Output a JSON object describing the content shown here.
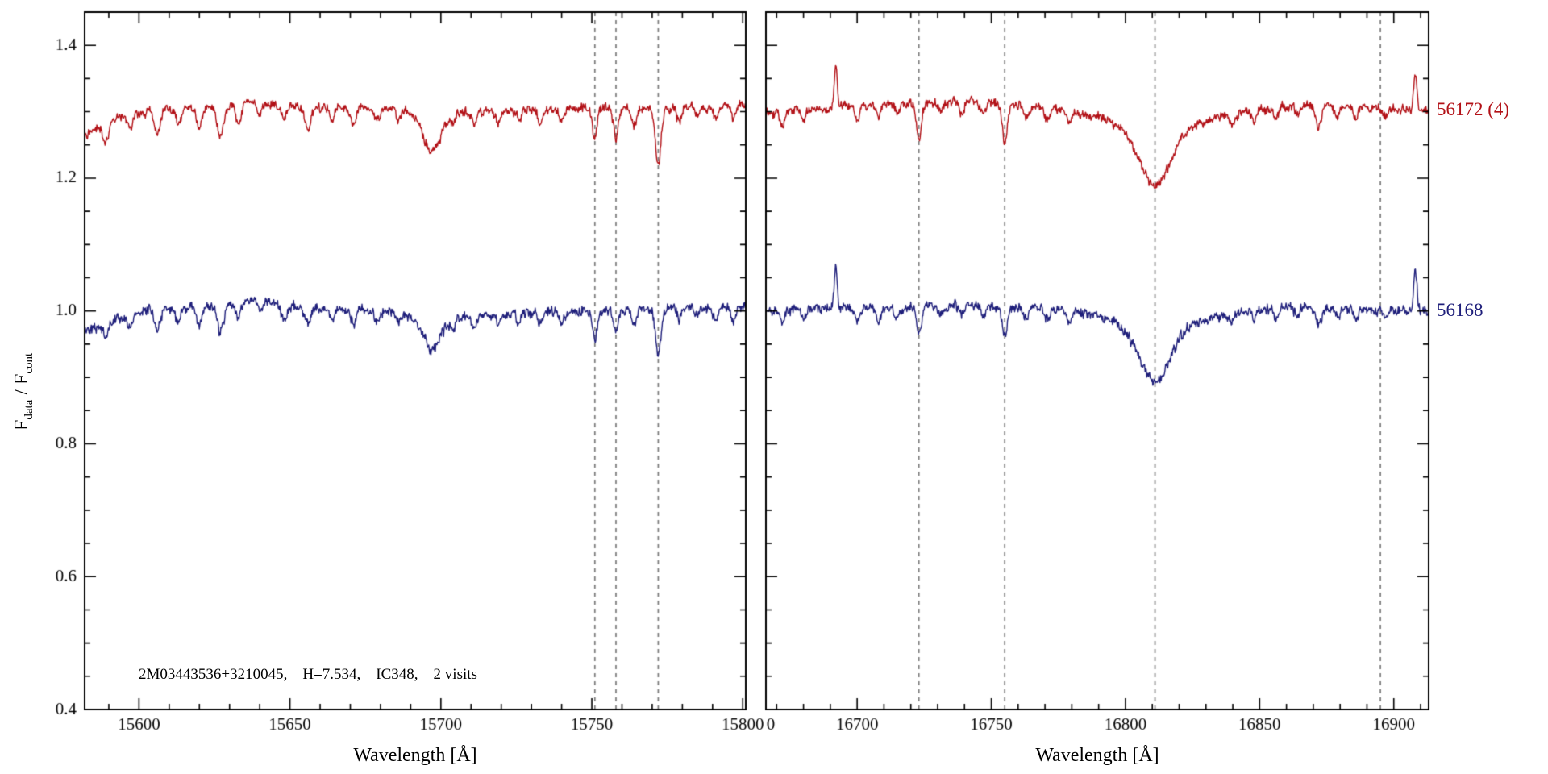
{
  "figure": {
    "ylabel_pre": "F",
    "ylabel_sub1": "data",
    "ylabel_mid": " / F",
    "ylabel_sub2": "cont",
    "annotation": "2M03443536+3210045,    H=7.534,    IC348,    2 visits",
    "background": "#ffffff",
    "frame_color": "#000000",
    "dashed_line_color": "#7a7a7a"
  },
  "chart_data": [
    {
      "type": "line",
      "panel": "left",
      "xlabel": "Wavelength [Å]",
      "ylabel": "F_data / F_cont",
      "xlim": [
        15582,
        15801
      ],
      "ylim": [
        0.4,
        1.45
      ],
      "xticks": [
        15600,
        15650,
        15700,
        15750,
        15800
      ],
      "yticks": [
        0.4,
        0.6,
        0.8,
        1.0,
        1.2,
        1.4
      ],
      "x_minor_step": 10,
      "y_minor_step": 0.05,
      "show_ytick_labels": true,
      "grid": false,
      "dashed_vlines": [
        15751,
        15758,
        15772
      ],
      "series": [
        {
          "name": "56172 (4)",
          "color": "#b21016",
          "continuum": 1.302,
          "noise": 0.0055,
          "shape": [
            [
              15582,
              -0.038
            ],
            [
              15592,
              -0.012
            ],
            [
              15602,
              -0.002
            ],
            [
              15615,
              0.003
            ],
            [
              15638,
              0.012
            ],
            [
              15652,
              0.006
            ],
            [
              15668,
              0.004
            ],
            [
              15684,
              0.002
            ],
            [
              15700,
              -0.004
            ],
            [
              15715,
              -0.002
            ],
            [
              15735,
              0.002
            ],
            [
              15755,
              0.004
            ],
            [
              15775,
              0.004
            ],
            [
              15801,
              0.008
            ]
          ],
          "features": [
            [
              15589,
              0.028,
              2.2
            ],
            [
              15597,
              0.02,
              1.8
            ],
            [
              15606,
              0.036,
              2.2
            ],
            [
              15613,
              0.022,
              1.8
            ],
            [
              15620,
              0.03,
              2
            ],
            [
              15627,
              0.05,
              2.4
            ],
            [
              15633,
              0.032,
              2
            ],
            [
              15640,
              0.02,
              1.6
            ],
            [
              15648,
              0.026,
              2
            ],
            [
              15656,
              0.032,
              2.2
            ],
            [
              15664,
              0.02,
              1.8
            ],
            [
              15671,
              0.026,
              2
            ],
            [
              15679,
              0.02,
              1.8
            ],
            [
              15686,
              0.016,
              1.8
            ],
            [
              15697,
              0.058,
              7
            ],
            [
              15704,
              0.016,
              1.8
            ],
            [
              15711,
              0.02,
              1.8
            ],
            [
              15719,
              0.018,
              1.8
            ],
            [
              15726,
              0.016,
              1.8
            ],
            [
              15733,
              0.02,
              1.8
            ],
            [
              15740,
              0.022,
              1.8
            ],
            [
              15751,
              0.05,
              1.8
            ],
            [
              15758,
              0.045,
              1.8
            ],
            [
              15764,
              0.026,
              1.8
            ],
            [
              15772,
              0.085,
              2.2
            ],
            [
              15779,
              0.022,
              1.8
            ],
            [
              15785,
              0.016,
              1.6
            ],
            [
              15791,
              0.02,
              1.8
            ],
            [
              15797,
              0.022,
              1.8
            ]
          ]
        },
        {
          "name": "56168",
          "color": "#1e1e7a",
          "continuum": 1.0,
          "noise": 0.006,
          "shape": [
            [
              15582,
              -0.033
            ],
            [
              15592,
              -0.015
            ],
            [
              15602,
              0.0
            ],
            [
              15612,
              0.004
            ],
            [
              15626,
              0.008
            ],
            [
              15638,
              0.018
            ],
            [
              15648,
              0.008
            ],
            [
              15662,
              0.004
            ],
            [
              15676,
              0.002
            ],
            [
              15692,
              -0.006
            ],
            [
              15706,
              -0.01
            ],
            [
              15722,
              -0.004
            ],
            [
              15740,
              0.0
            ],
            [
              15760,
              0.002
            ],
            [
              15780,
              0.006
            ],
            [
              15801,
              0.004
            ]
          ],
          "features": [
            [
              15589,
              0.022,
              2
            ],
            [
              15597,
              0.016,
              1.8
            ],
            [
              15606,
              0.03,
              2.2
            ],
            [
              15613,
              0.02,
              1.8
            ],
            [
              15620,
              0.026,
              2
            ],
            [
              15627,
              0.04,
              2.4
            ],
            [
              15633,
              0.026,
              2
            ],
            [
              15640,
              0.018,
              1.6
            ],
            [
              15648,
              0.022,
              2
            ],
            [
              15656,
              0.026,
              2.2
            ],
            [
              15664,
              0.018,
              1.8
            ],
            [
              15671,
              0.022,
              2
            ],
            [
              15679,
              0.018,
              1.8
            ],
            [
              15686,
              0.014,
              1.8
            ],
            [
              15697,
              0.05,
              7
            ],
            [
              15704,
              0.014,
              1.8
            ],
            [
              15711,
              0.018,
              1.8
            ],
            [
              15719,
              0.016,
              1.8
            ],
            [
              15726,
              0.014,
              1.8
            ],
            [
              15733,
              0.018,
              1.8
            ],
            [
              15740,
              0.02,
              1.8
            ],
            [
              15751,
              0.042,
              1.8
            ],
            [
              15758,
              0.036,
              1.8
            ],
            [
              15764,
              0.022,
              1.8
            ],
            [
              15772,
              0.068,
              2.2
            ],
            [
              15779,
              0.018,
              1.8
            ],
            [
              15785,
              0.014,
              1.6
            ],
            [
              15791,
              0.018,
              1.8
            ],
            [
              15797,
              0.018,
              1.8
            ]
          ]
        }
      ]
    },
    {
      "type": "line",
      "panel": "right",
      "xlabel": "Wavelength [Å]",
      "ylabel": "F_data / F_cont",
      "xlim": [
        16666,
        16913
      ],
      "ylim": [
        0.4,
        1.45
      ],
      "xticks": [
        16700,
        16750,
        16800,
        16850,
        16900
      ],
      "yticks": [
        0.4,
        0.6,
        0.8,
        1.0,
        1.2,
        1.4
      ],
      "x_minor_step": 10,
      "y_minor_step": 0.05,
      "show_ytick_labels": false,
      "clipped_left_tick_label": "0",
      "grid": false,
      "dashed_vlines": [
        16723,
        16755,
        16811,
        16895
      ],
      "series_labels": [
        {
          "text": "56172 (4)",
          "color": "#b21016",
          "y": 1.302
        },
        {
          "text": "56168",
          "color": "#1e1e7a",
          "y": 1.0
        }
      ],
      "series": [
        {
          "name": "56172 (4)",
          "color": "#b21016",
          "continuum": 1.302,
          "noise": 0.0055,
          "shape": [
            [
              16666,
              -0.005
            ],
            [
              16678,
              0.0
            ],
            [
              16690,
              0.004
            ],
            [
              16705,
              0.008
            ],
            [
              16722,
              0.01
            ],
            [
              16738,
              0.014
            ],
            [
              16752,
              0.012
            ],
            [
              16766,
              0.006
            ],
            [
              16780,
              0.0
            ],
            [
              16795,
              -0.006
            ],
            [
              16830,
              -0.008
            ],
            [
              16842,
              -0.004
            ],
            [
              16852,
              0.002
            ],
            [
              16862,
              0.008
            ],
            [
              16876,
              0.006
            ],
            [
              16890,
              0.004
            ],
            [
              16913,
              0.0
            ]
          ],
          "features": [
            [
              16692,
              -0.06,
              1.3
            ],
            [
              16908,
              -0.055,
              1.4
            ],
            [
              16672,
              0.02,
              2
            ],
            [
              16680,
              0.018,
              2
            ],
            [
              16700,
              0.02,
              2
            ],
            [
              16708,
              0.016,
              2
            ],
            [
              16715,
              0.014,
              2
            ],
            [
              16723,
              0.055,
              2
            ],
            [
              16731,
              0.016,
              2
            ],
            [
              16739,
              0.018,
              2
            ],
            [
              16747,
              0.02,
              2
            ],
            [
              16755,
              0.06,
              2.2
            ],
            [
              16763,
              0.02,
              2
            ],
            [
              16771,
              0.018,
              2
            ],
            [
              16779,
              0.016,
              2
            ],
            [
              16811,
              0.08,
              13
            ],
            [
              16811,
              0.026,
              30
            ],
            [
              16840,
              0.014,
              2
            ],
            [
              16848,
              0.014,
              2
            ],
            [
              16856,
              0.016,
              2
            ],
            [
              16864,
              0.014,
              2
            ],
            [
              16872,
              0.032,
              2.4
            ],
            [
              16879,
              0.016,
              2
            ],
            [
              16886,
              0.014,
              2
            ],
            [
              16897,
              0.012,
              2
            ]
          ]
        },
        {
          "name": "56168",
          "color": "#1e1e7a",
          "continuum": 1.0,
          "noise": 0.006,
          "shape": [
            [
              16666,
              0.0
            ],
            [
              16680,
              0.002
            ],
            [
              16695,
              0.004
            ],
            [
              16710,
              0.004
            ],
            [
              16725,
              0.006
            ],
            [
              16740,
              0.008
            ],
            [
              16755,
              0.006
            ],
            [
              16770,
              0.004
            ],
            [
              16785,
              -0.002
            ],
            [
              16800,
              -0.006
            ],
            [
              16830,
              -0.006
            ],
            [
              16845,
              0.0
            ],
            [
              16860,
              0.006
            ],
            [
              16875,
              0.004
            ],
            [
              16890,
              0.002
            ],
            [
              16913,
              0.0
            ]
          ],
          "features": [
            [
              16692,
              -0.065,
              1.3
            ],
            [
              16908,
              -0.06,
              1.4
            ],
            [
              16672,
              0.018,
              2
            ],
            [
              16680,
              0.016,
              2
            ],
            [
              16700,
              0.018,
              2
            ],
            [
              16708,
              0.02,
              2
            ],
            [
              16715,
              0.016,
              2
            ],
            [
              16723,
              0.04,
              2
            ],
            [
              16731,
              0.015,
              2
            ],
            [
              16739,
              0.016,
              2
            ],
            [
              16747,
              0.018,
              2
            ],
            [
              16755,
              0.045,
              2.2
            ],
            [
              16763,
              0.018,
              2
            ],
            [
              16771,
              0.016,
              2
            ],
            [
              16779,
              0.015,
              2
            ],
            [
              16811,
              0.075,
              13
            ],
            [
              16811,
              0.024,
              28
            ],
            [
              16840,
              0.013,
              2
            ],
            [
              16848,
              0.013,
              2
            ],
            [
              16856,
              0.015,
              2
            ],
            [
              16864,
              0.013,
              2
            ],
            [
              16872,
              0.028,
              2.4
            ],
            [
              16879,
              0.015,
              2
            ],
            [
              16886,
              0.013,
              2
            ],
            [
              16897,
              0.012,
              2
            ]
          ]
        }
      ]
    }
  ]
}
